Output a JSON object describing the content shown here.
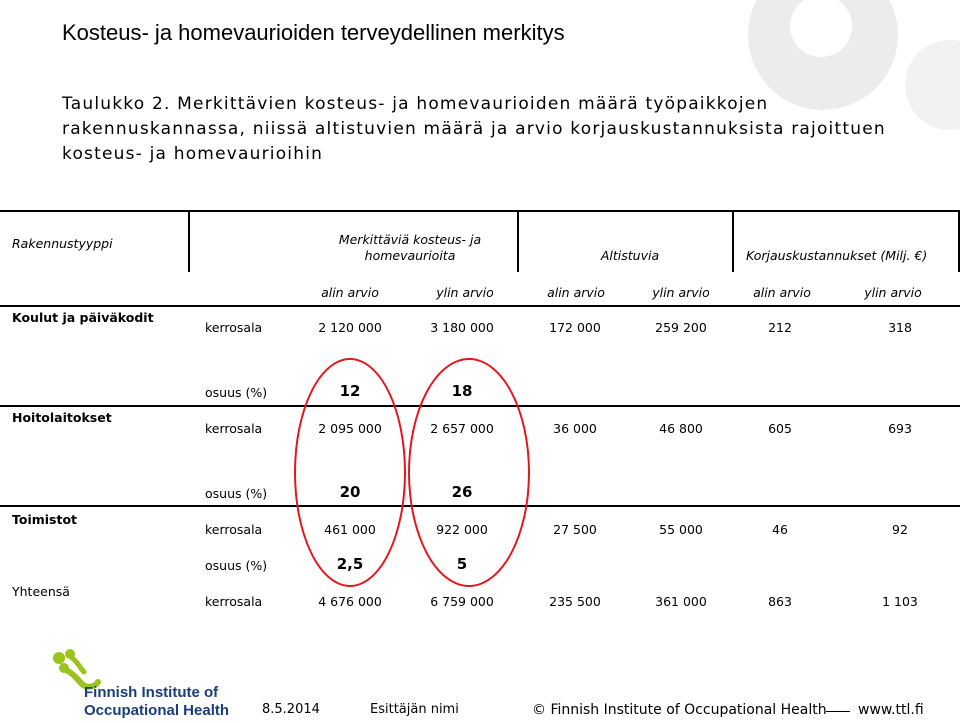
{
  "header": {
    "title": "Kosteus- ja homevaurioiden terveydellinen merkitys",
    "subtitle": "Taulukko 2. Merkittävien kosteus- ja homevaurioiden määrä työpaikkojen rakennuskannassa, niissä altistuvien määrä ja arvio korjauskustannuksista rajoittuen kosteus- ja homevaurioihin"
  },
  "table": {
    "col_rakennustyyppi": "Rakennustyyppi",
    "col_merkittavia": "Merkittäviä kosteus- ja homevaurioita",
    "col_altistuvia": "Altistuvia",
    "col_korjaus": "Korjauskustannukset (Milj. €)",
    "sub_alin": "alin arvio",
    "sub_ylin": "ylin arvio",
    "rows": [
      {
        "name": "Koulut ja päiväkodit",
        "kerrosala_label": "kerrosala",
        "vals": [
          "2 120 000",
          "3 180 000",
          "172 000",
          "259 200",
          "212",
          "318"
        ],
        "osuus_label": "osuus (%)",
        "osuus": [
          "12",
          "18"
        ]
      },
      {
        "name": "Hoitolaitokset",
        "kerrosala_label": "kerrosala",
        "vals": [
          "2 095 000",
          "2 657 000",
          "36 000",
          "46 800",
          "605",
          "693"
        ],
        "osuus_label": "osuus (%)",
        "osuus": [
          "20",
          "26"
        ]
      },
      {
        "name": "Toimistot",
        "kerrosala_label": "kerrosala",
        "vals": [
          "461 000",
          "922 000",
          "27 500",
          "55 000",
          "46",
          "92"
        ],
        "osuus_label": "osuus (%)",
        "osuus": [
          "2,5",
          "5"
        ]
      },
      {
        "name": "Yhteensä",
        "kerrosala_label": "kerrosala",
        "vals": [
          "4 676 000",
          "6 759 000",
          "235 500",
          "361 000",
          "863",
          "1 103"
        ]
      }
    ]
  },
  "footer": {
    "logo_line1": "Finnish Institute of",
    "logo_line2": "Occupational Health",
    "date": "8.5.2014",
    "presenter": "Esittäjän nimi",
    "copyright": "© Finnish Institute of Occupational Health",
    "url": "www.ttl.fi"
  },
  "colors": {
    "accent_red": "#e8141c",
    "logo_green": "#9ac31c",
    "logo_blue": "#1a3d7c",
    "deco_gray": "#e4e4e4"
  }
}
